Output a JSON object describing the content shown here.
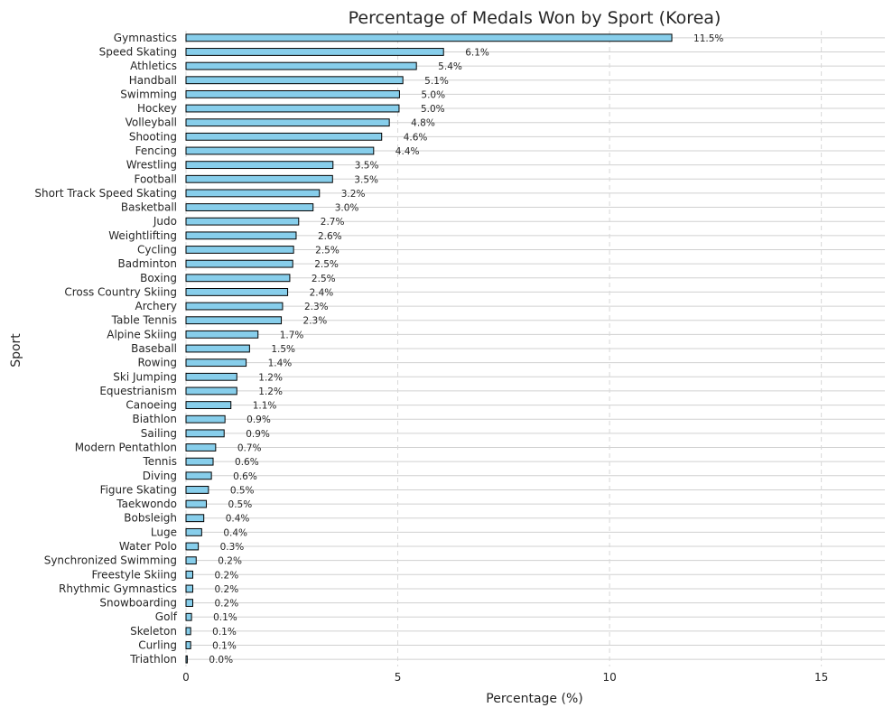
{
  "chart_data": {
    "type": "bar",
    "orientation": "horizontal",
    "title": "Percentage of Medals Won by Sport (Korea)",
    "xlabel": "Percentage (%)",
    "ylabel": "Sport",
    "xlim": [
      0,
      16.5
    ],
    "xticks": [
      0,
      5,
      10,
      15
    ],
    "grid": true,
    "bar_color": "#87CEEB",
    "bar_edge_color": "#000000",
    "categories": [
      "Gymnastics",
      "Speed Skating",
      "Athletics",
      "Handball",
      "Swimming",
      "Hockey",
      "Volleyball",
      "Shooting",
      "Fencing",
      "Wrestling",
      "Football",
      "Short Track Speed Skating",
      "Basketball",
      "Judo",
      "Weightlifting",
      "Cycling",
      "Badminton",
      "Boxing",
      "Cross Country Skiing",
      "Archery",
      "Table Tennis",
      "Alpine Skiing",
      "Baseball",
      "Rowing",
      "Ski Jumping",
      "Equestrianism",
      "Canoeing",
      "Biathlon",
      "Sailing",
      "Modern Pentathlon",
      "Tennis",
      "Diving",
      "Figure Skating",
      "Taekwondo",
      "Bobsleigh",
      "Luge",
      "Water Polo",
      "Synchronized Swimming",
      "Freestyle Skiing",
      "Rhythmic Gymnastics",
      "Snowboarding",
      "Golf",
      "Skeleton",
      "Curling",
      "Triathlon"
    ],
    "values": [
      11.47,
      6.08,
      5.44,
      5.12,
      5.04,
      5.03,
      4.8,
      4.62,
      4.43,
      3.47,
      3.46,
      3.15,
      3.0,
      2.66,
      2.6,
      2.54,
      2.52,
      2.45,
      2.4,
      2.28,
      2.25,
      1.7,
      1.5,
      1.42,
      1.2,
      1.2,
      1.06,
      0.92,
      0.9,
      0.7,
      0.64,
      0.6,
      0.53,
      0.48,
      0.42,
      0.37,
      0.29,
      0.24,
      0.16,
      0.16,
      0.16,
      0.13,
      0.11,
      0.11,
      0.03
    ],
    "value_labels": [
      "11.5%",
      "6.1%",
      "5.4%",
      "5.1%",
      "5.0%",
      "5.0%",
      "4.8%",
      "4.6%",
      "4.4%",
      "3.5%",
      "3.5%",
      "3.2%",
      "3.0%",
      "2.7%",
      "2.6%",
      "2.5%",
      "2.5%",
      "2.5%",
      "2.4%",
      "2.3%",
      "2.3%",
      "1.7%",
      "1.5%",
      "1.4%",
      "1.2%",
      "1.2%",
      "1.1%",
      "0.9%",
      "0.9%",
      "0.7%",
      "0.6%",
      "0.6%",
      "0.5%",
      "0.5%",
      "0.4%",
      "0.4%",
      "0.3%",
      "0.2%",
      "0.2%",
      "0.2%",
      "0.2%",
      "0.1%",
      "0.1%",
      "0.1%",
      "0.0%"
    ]
  }
}
